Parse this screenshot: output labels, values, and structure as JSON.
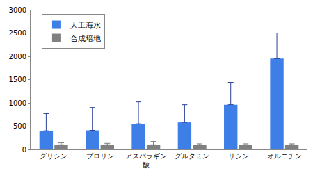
{
  "chart_data": {
    "type": "bar",
    "categories": [
      "グリシン",
      "プロリン",
      "アスパラギン酸",
      "グルタミン",
      "リシン",
      "オルニチン"
    ],
    "series": [
      {
        "name": "人工海水",
        "color": "#3d7fe6",
        "values": [
          400,
          410,
          550,
          580,
          960,
          1950
        ],
        "error": [
          370,
          490,
          470,
          380,
          480,
          550
        ]
      },
      {
        "name": "合成培地",
        "color": "#808080",
        "values": [
          100,
          100,
          100,
          100,
          100,
          100
        ],
        "error": [
          40,
          30,
          70,
          20,
          20,
          20
        ]
      }
    ],
    "ylim": [
      0,
      3000
    ],
    "yticks": [
      0,
      500,
      1000,
      1500,
      2000,
      2500,
      3000
    ],
    "grid": false,
    "legend": "upper left"
  }
}
